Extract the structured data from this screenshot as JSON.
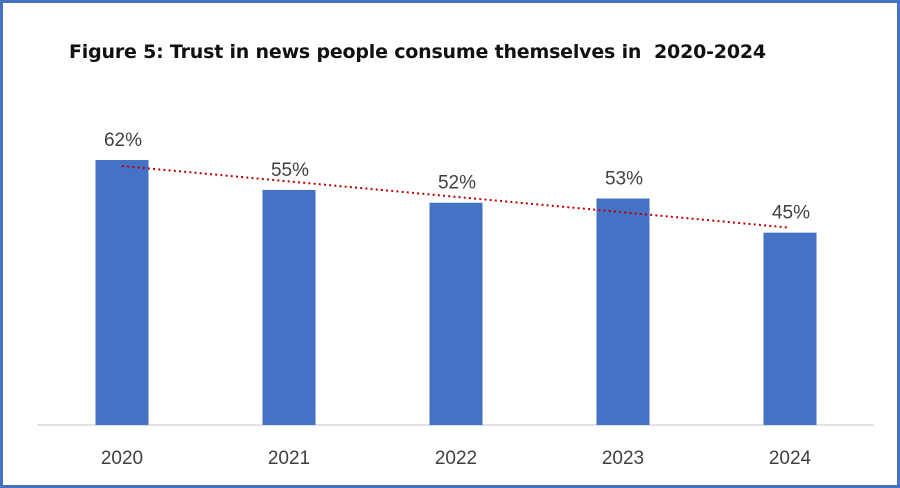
{
  "chart_data": {
    "type": "bar",
    "title": "Figure 5: Trust in news people consume themselves in  2020-2024",
    "categories": [
      "2020",
      "2021",
      "2022",
      "2023",
      "2024"
    ],
    "values": [
      62,
      55,
      52,
      53,
      45
    ],
    "data_labels": [
      "62%",
      "55%",
      "52%",
      "53%",
      "45%"
    ],
    "xlabel": "",
    "ylabel": "",
    "ylim": [
      0,
      62
    ],
    "grid": false,
    "legend": "none",
    "trendline": {
      "type": "linear",
      "style": "dotted",
      "color": "#C00000"
    },
    "colors": {
      "bar": "#4472C4",
      "frame": "#4472C4",
      "axis": "#D9D9D9",
      "text": "#404040"
    }
  }
}
